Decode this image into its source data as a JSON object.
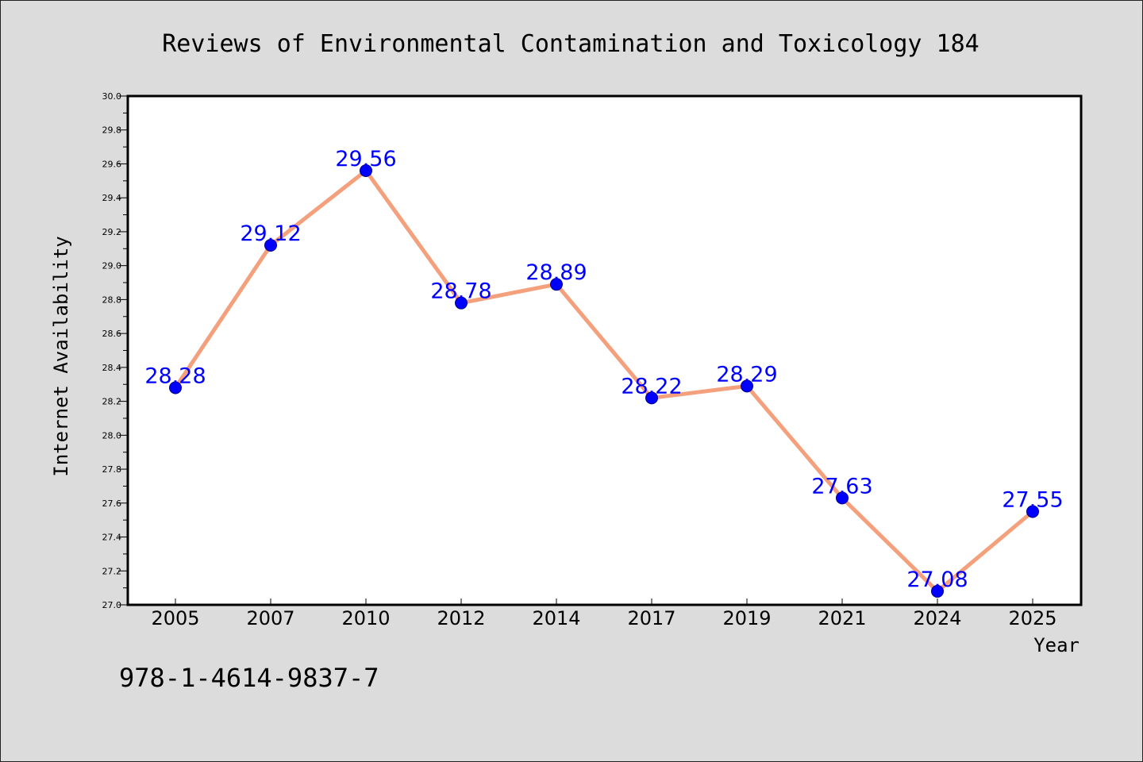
{
  "chart_data": {
    "type": "line",
    "title": "Reviews of Environmental Contamination and Toxicology 184",
    "xlabel": "Year",
    "ylabel": "Internet Availability",
    "categories": [
      "2005",
      "2007",
      "2010",
      "2012",
      "2014",
      "2017",
      "2019",
      "2021",
      "2024",
      "2025"
    ],
    "series": [
      {
        "values": [
          28.28,
          29.12,
          29.56,
          28.78,
          28.89,
          28.22,
          28.29,
          27.63,
          27.08,
          27.55
        ]
      }
    ],
    "data_labels": [
      "28.28",
      "29.12",
      "29.56",
      "28.78",
      "28.89",
      "28.22",
      "28.29",
      "27.63",
      "27.08",
      "27.55"
    ],
    "ylim": [
      27.0,
      30.0
    ],
    "yticks": [
      "27.0",
      "27.2",
      "27.4",
      "27.6",
      "27.8",
      "28.0",
      "28.2",
      "28.4",
      "28.6",
      "28.8",
      "29.0",
      "29.2",
      "29.4",
      "29.6",
      "29.8",
      "30.0"
    ],
    "grid": false,
    "legend": "none",
    "colors": {
      "line": "#f4a07c",
      "marker": "#0000ff",
      "label": "#0000ff",
      "plot_bg": "#ffffff",
      "figure_bg": "#dcdcdc"
    }
  },
  "footer": {
    "isbn": "978-1-4614-9837-7"
  }
}
